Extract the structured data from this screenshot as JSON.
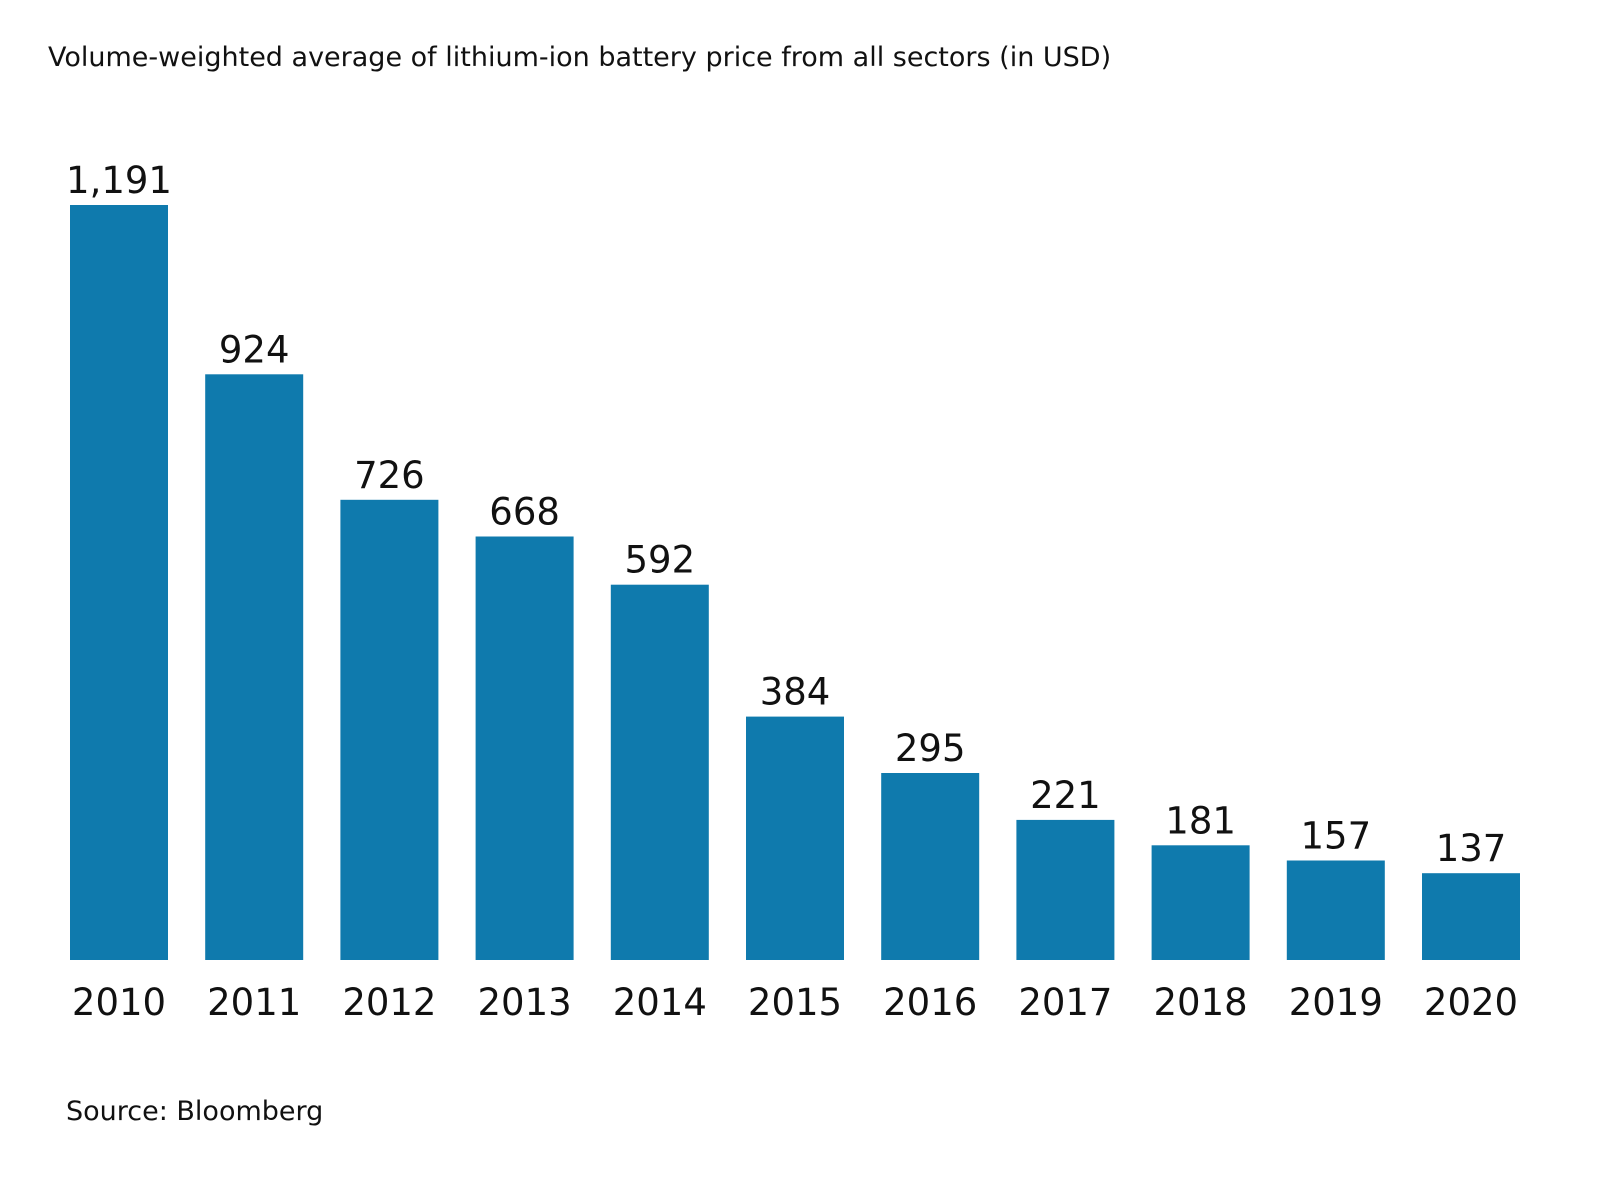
{
  "chart_data": {
    "type": "bar",
    "title": "Volume-weighted average of lithium-ion battery price from all sectors (in USD)",
    "categories": [
      "2010",
      "2011",
      "2012",
      "2013",
      "2014",
      "2015",
      "2016",
      "2017",
      "2018",
      "2019",
      "2020"
    ],
    "values": [
      1191,
      924,
      726,
      668,
      592,
      384,
      295,
      221,
      181,
      157,
      137
    ],
    "value_labels": [
      "1,191",
      "924",
      "726",
      "668",
      "592",
      "384",
      "295",
      "221",
      "181",
      "157",
      "137"
    ],
    "ylim": [
      0,
      1191
    ],
    "grid": false,
    "legend": "none",
    "bar_color": "#0f7aad",
    "source": "Source: Bloomberg"
  }
}
